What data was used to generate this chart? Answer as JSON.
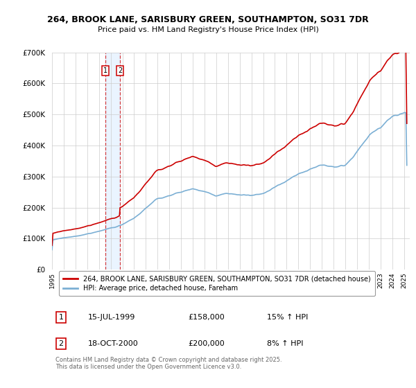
{
  "title1": "264, BROOK LANE, SARISBURY GREEN, SOUTHAMPTON, SO31 7DR",
  "title2": "Price paid vs. HM Land Registry's House Price Index (HPI)",
  "legend1": "264, BROOK LANE, SARISBURY GREEN, SOUTHAMPTON, SO31 7DR (detached house)",
  "legend2": "HPI: Average price, detached house, Fareham",
  "transaction1_date": "15-JUL-1999",
  "transaction1_price": "£158,000",
  "transaction1_hpi": "15% ↑ HPI",
  "transaction2_date": "18-OCT-2000",
  "transaction2_price": "£200,000",
  "transaction2_hpi": "8% ↑ HPI",
  "footer": "Contains HM Land Registry data © Crown copyright and database right 2025.\nThis data is licensed under the Open Government Licence v3.0.",
  "line1_color": "#cc0000",
  "line2_color": "#7bafd4",
  "vline_color": "#cc0000",
  "shade_color": "#ddeeff",
  "background_color": "#ffffff",
  "grid_color": "#cccccc",
  "ylim_min": 0,
  "ylim_max": 700000,
  "transaction1_x": 1999.54,
  "transaction2_x": 2000.8,
  "transaction1_price_val": 158000,
  "transaction2_price_val": 200000
}
